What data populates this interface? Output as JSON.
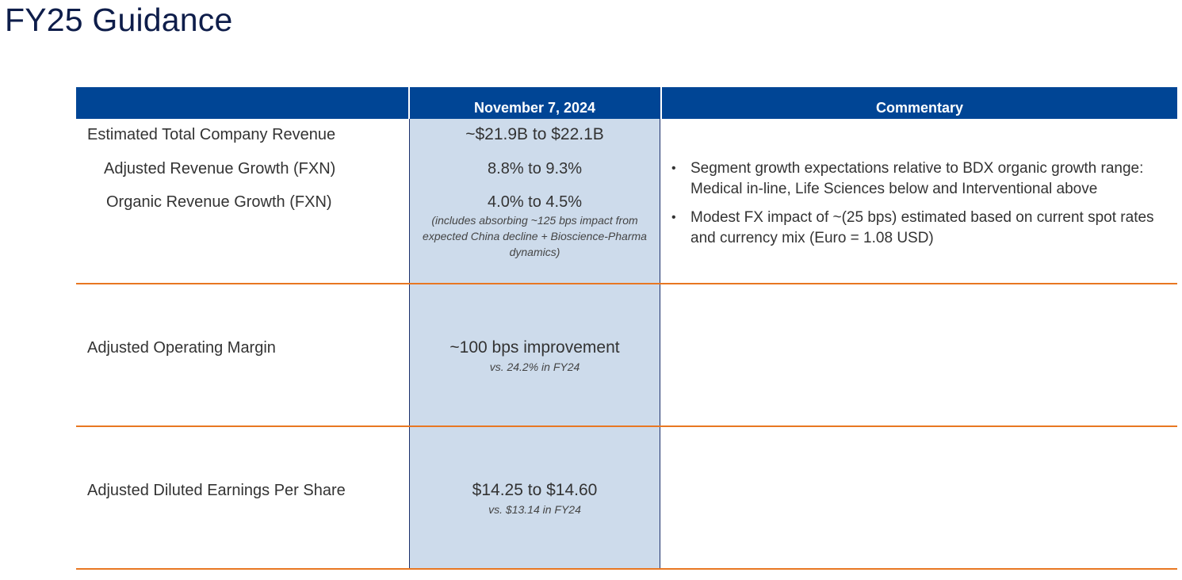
{
  "title": "FY25 Guidance",
  "table": {
    "header": {
      "date": "November 7, 2024",
      "commentary": "Commentary"
    },
    "rows": [
      {
        "label": "Estimated Total Company Revenue",
        "value": "~$21.9B to $22.1B"
      },
      {
        "label": "Adjusted Revenue Growth (FXN)",
        "value": "8.8% to 9.3%"
      },
      {
        "label": "Organic Revenue Growth (FXN)",
        "value": "4.0% to 4.5%",
        "note": "(includes absorbing ~125 bps impact from expected China decline + Bioscience-Pharma dynamics)"
      },
      {
        "label": "Adjusted Operating Margin",
        "value": "~100 bps improvement",
        "note": "vs. 24.2% in FY24"
      },
      {
        "label": "Adjusted Diluted Earnings Per Share",
        "value": "$14.25 to $14.60",
        "note": "vs. $13.14 in FY24"
      }
    ],
    "commentary": [
      "Segment growth expectations relative to BDX organic growth range: Medical in-line, Life Sciences below and Interventional above",
      "Modest FX impact of ~(25 bps) estimated based on current spot rates and currency mix (Euro = 1.08 USD)"
    ]
  },
  "colors": {
    "header_blue": "#004595",
    "column_shade": "#cddbeb",
    "row_divider_orange": "#e87722",
    "title_navy": "#0e1d4a"
  }
}
